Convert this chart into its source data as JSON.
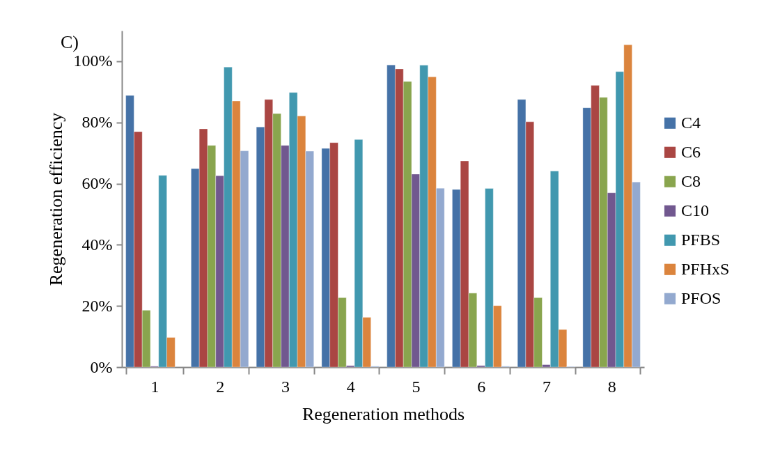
{
  "chart_data": {
    "type": "bar",
    "title": "C)",
    "xlabel": "Regeneration methods",
    "ylabel": "Regeneration efficiency",
    "categories": [
      "1",
      "2",
      "3",
      "4",
      "5",
      "6",
      "7",
      "8"
    ],
    "series": [
      {
        "name": "C4",
        "color": "#4572a7",
        "values": [
          88.8,
          64.9,
          78.5,
          71.5,
          98.8,
          58.1,
          87.5,
          84.8
        ]
      },
      {
        "name": "C6",
        "color": "#aa4643",
        "values": [
          77.0,
          77.9,
          87.5,
          73.4,
          97.5,
          67.4,
          80.2,
          92.1
        ]
      },
      {
        "name": "C8",
        "color": "#89a54e",
        "values": [
          18.6,
          72.5,
          82.9,
          22.7,
          93.4,
          24.2,
          22.7,
          88.2
        ]
      },
      {
        "name": "C10",
        "color": "#71588f",
        "values": [
          0.3,
          62.6,
          72.5,
          0.5,
          63.1,
          0.5,
          0.8,
          57.0
        ]
      },
      {
        "name": "PFBS",
        "color": "#4198af",
        "values": [
          62.7,
          98.1,
          89.8,
          74.4,
          98.7,
          58.4,
          64.1,
          96.6
        ]
      },
      {
        "name": "PFHxS",
        "color": "#db843d",
        "values": [
          9.7,
          87.0,
          82.1,
          16.3,
          94.9,
          20.1,
          12.3,
          105.4
        ]
      },
      {
        "name": "PFOS",
        "color": "#93a9cf",
        "values": [
          null,
          70.7,
          70.6,
          0.3,
          58.5,
          0.3,
          0.2,
          60.5
        ]
      }
    ],
    "ylim": [
      0,
      110
    ],
    "yticks": [
      {
        "value": 0,
        "label": "0%"
      },
      {
        "value": 20,
        "label": "20%"
      },
      {
        "value": 40,
        "label": "40%"
      },
      {
        "value": 60,
        "label": "60%"
      },
      {
        "value": 80,
        "label": "80%"
      },
      {
        "value": 100,
        "label": "100%"
      }
    ],
    "grid": false,
    "legend": "right"
  }
}
